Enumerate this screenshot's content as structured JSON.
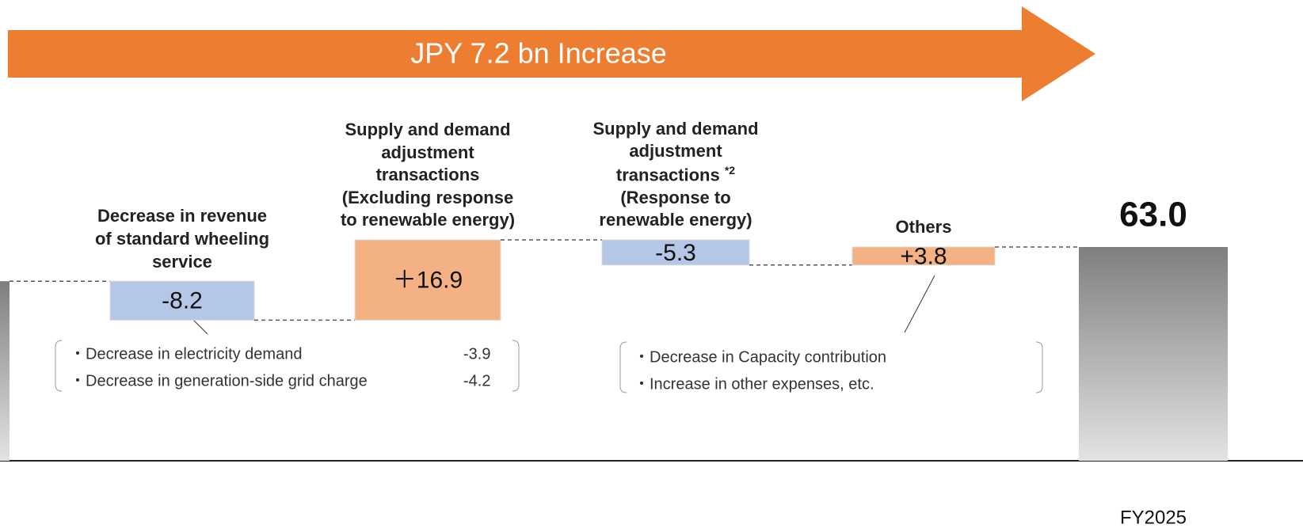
{
  "chart_data": {
    "type": "waterfall",
    "banner": "JPY 7.2 bn Increase",
    "categories": [
      null,
      "Decrease in revenue of standard wheeling service",
      "Supply and demand adjustment transactions",
      "Supply and demand adjustment transactions",
      "Others",
      "FY2025"
    ],
    "category_notes": [
      null,
      null,
      null,
      "*2",
      null,
      null
    ],
    "category_details": [
      null,
      null,
      "(Excluding response to renewable energy)",
      "(Response to renewable energy)",
      null,
      null
    ],
    "measures": [
      "absolute",
      "relative",
      "relative",
      "relative",
      "relative",
      "total"
    ],
    "values": [
      55.8,
      -8.2,
      16.9,
      -5.3,
      3.8,
      63.0
    ],
    "value_labels": [
      null,
      "-8.2",
      "＋16.9",
      "-5.3",
      "+3.8",
      "63.0"
    ],
    "colors": [
      "#a6a6a6",
      "#b4c7e7",
      "#f4b183",
      "#b4c7e7",
      "#f4b183",
      "#a6a6a6"
    ],
    "ylim": [
      18,
      70
    ],
    "notes": [
      {
        "items": [
          {
            "text": "・Decrease in electricity demand",
            "value": -3.9
          },
          {
            "text": "・Decrease in generation-side grid charge",
            "value": -4.2
          }
        ]
      },
      {
        "items": [
          {
            "text": "・Decrease in Capacity contribution"
          },
          {
            "text": "・Increase in other expenses, etc."
          }
        ]
      }
    ]
  }
}
